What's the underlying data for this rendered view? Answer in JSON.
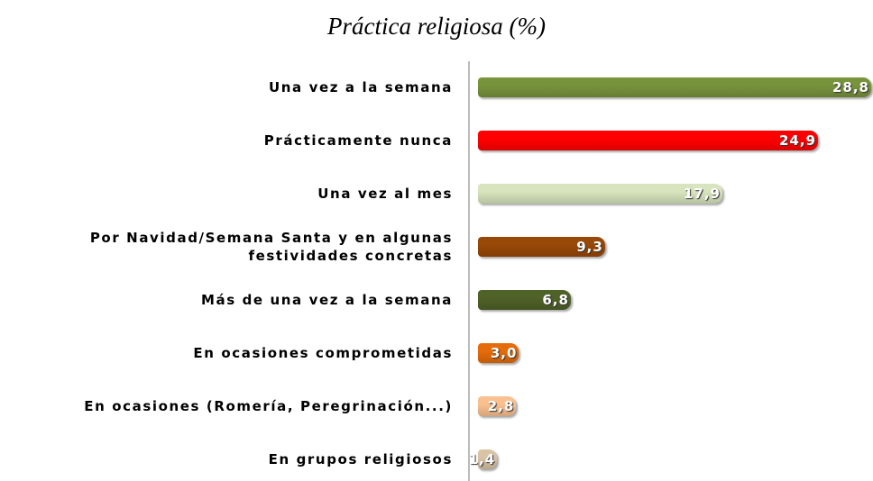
{
  "chart_data": {
    "type": "hbar",
    "title": "Práctica religiosa (%)",
    "categories": [
      "Una vez a la semana",
      "Prácticamente nunca",
      "Una vez al mes",
      "Por Navidad/Semana Santa y en algunas festividades concretas",
      "Más de una vez a la semana",
      "En ocasiones comprometidas",
      "En ocasiones (Romería, Peregrinación...)",
      "En grupos religiosos"
    ],
    "values": [
      28.8,
      24.9,
      17.9,
      9.3,
      6.8,
      3.0,
      2.8,
      1.4
    ],
    "value_labels": [
      "28,8",
      "24,9",
      "17,9",
      "9,3",
      "6,8",
      "3,0",
      "2,8",
      "1,4"
    ],
    "colors": [
      "#77933c",
      "#ff0000",
      "#d7e4bd",
      "#984807",
      "#4f6228",
      "#e46c0a",
      "#fac090",
      "#d9c3a5"
    ]
  }
}
